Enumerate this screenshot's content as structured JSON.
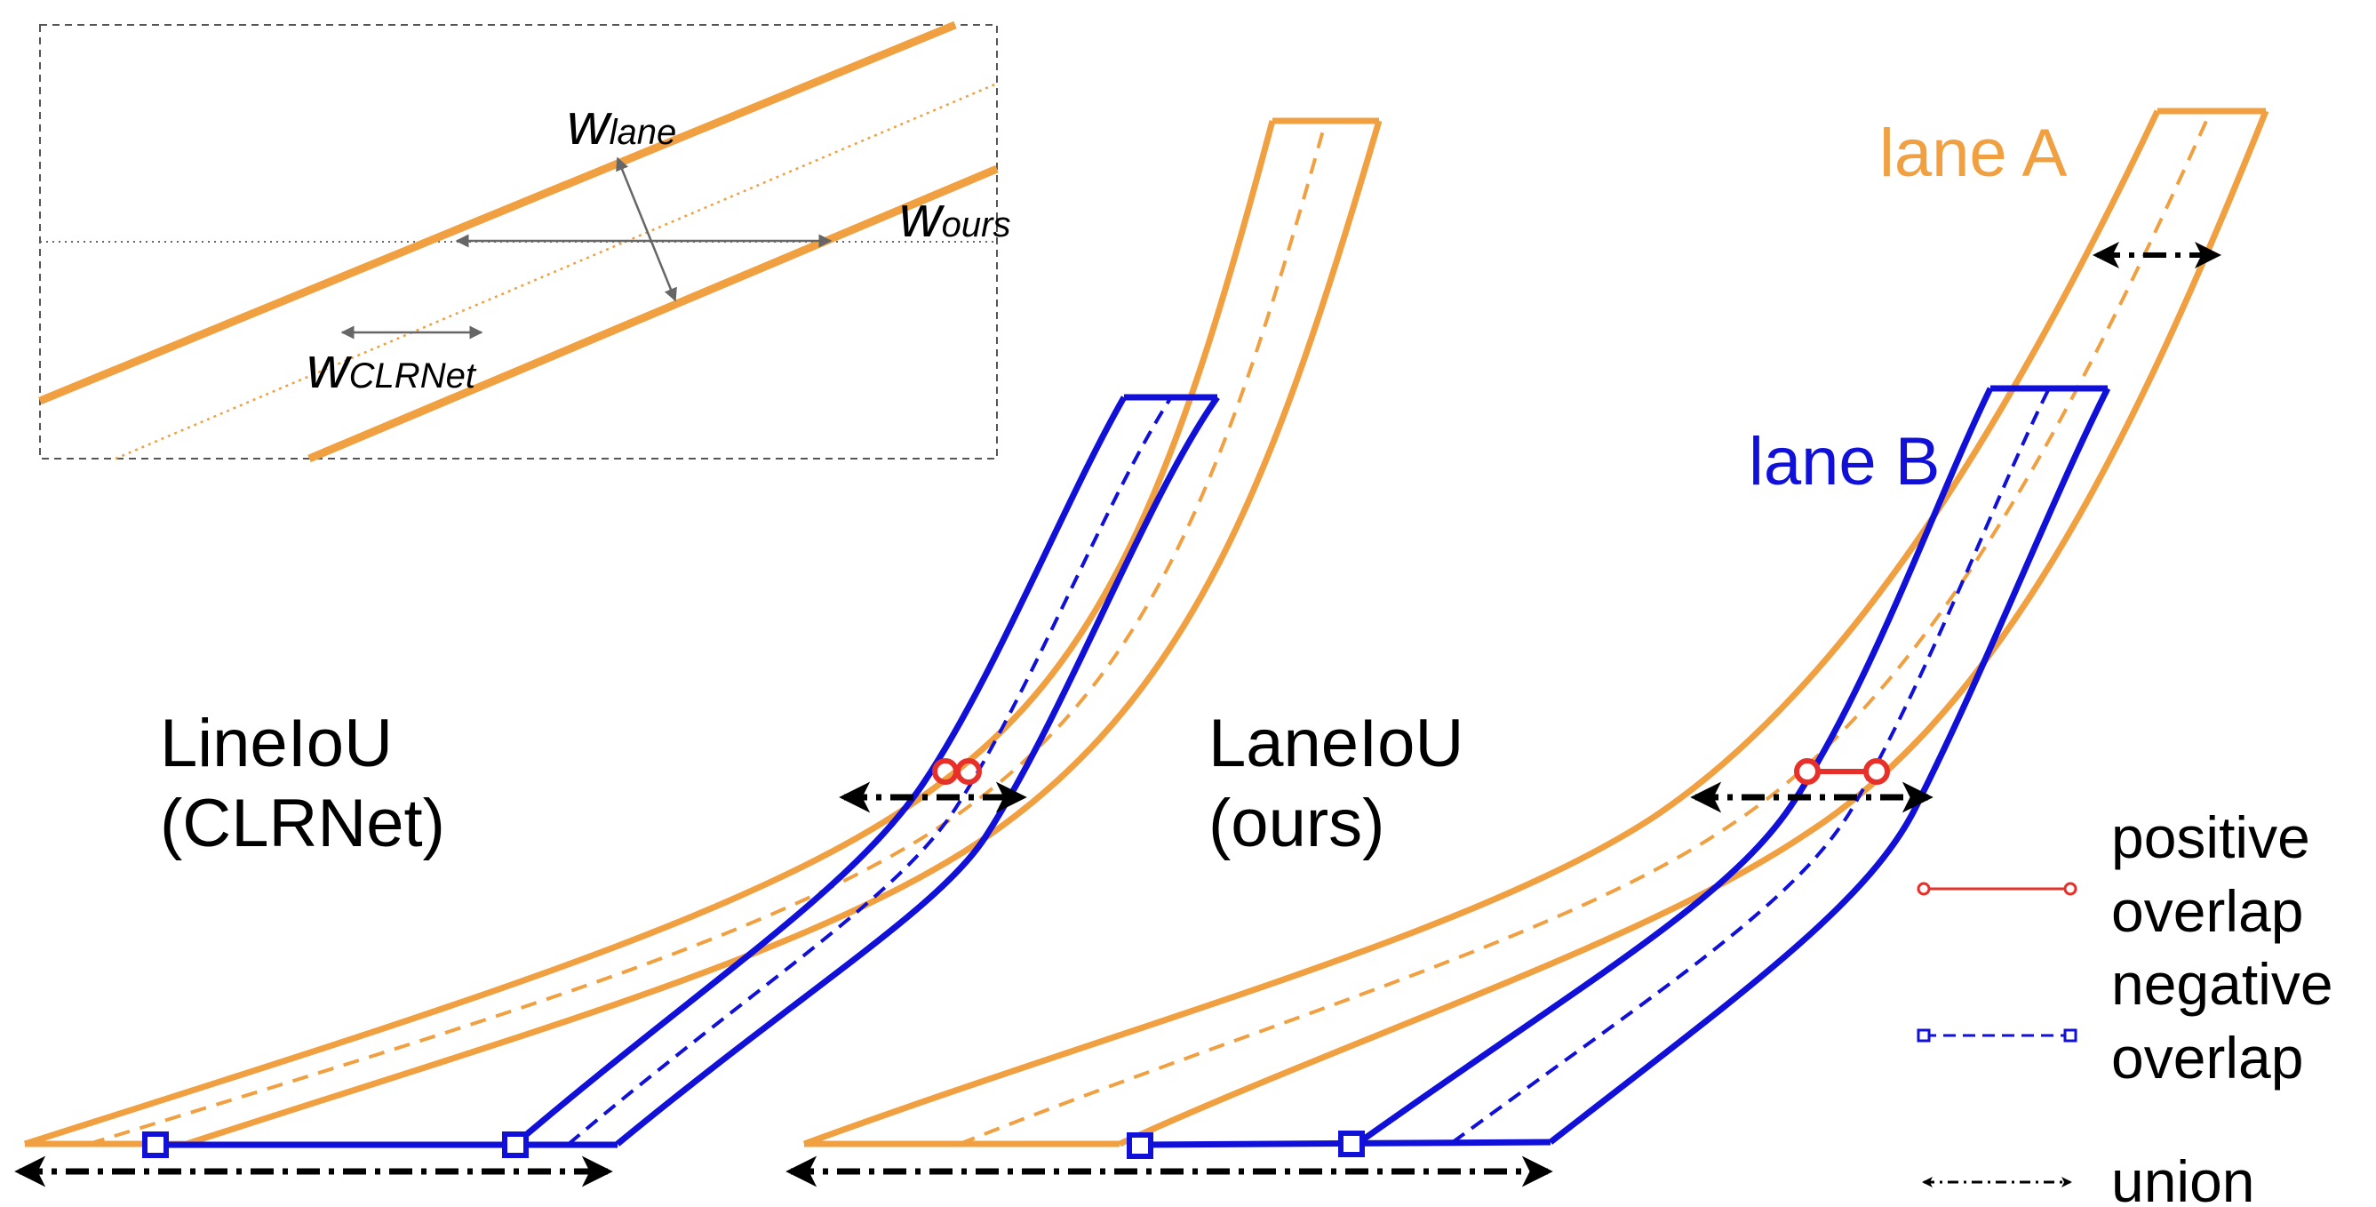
{
  "inset": {
    "w_lane": {
      "symbol": "w",
      "subscript": "lane"
    },
    "w_ours": {
      "symbol": "w",
      "subscript": "ours"
    },
    "w_clrnet": {
      "symbol": "w",
      "subscript": "CLRNet"
    }
  },
  "left_panel": {
    "title_line1": "LineIoU",
    "title_line2": "(CLRNet)"
  },
  "right_panel": {
    "title_line1": "LaneIoU",
    "title_line2": "(ours)"
  },
  "lane_labels": {
    "lane_a": "lane A",
    "lane_b": "lane B"
  },
  "legend": {
    "positive_line1": "positive",
    "positive_line2": "overlap",
    "negative_line1": "negative",
    "negative_line2": "overlap",
    "union": "union"
  },
  "colors": {
    "lane_a": "#F0A040",
    "lane_b": "#1010D8",
    "positive": "#E8302A",
    "union": "#000000",
    "inset_border": "#555555",
    "inset_arrow": "#666666"
  }
}
